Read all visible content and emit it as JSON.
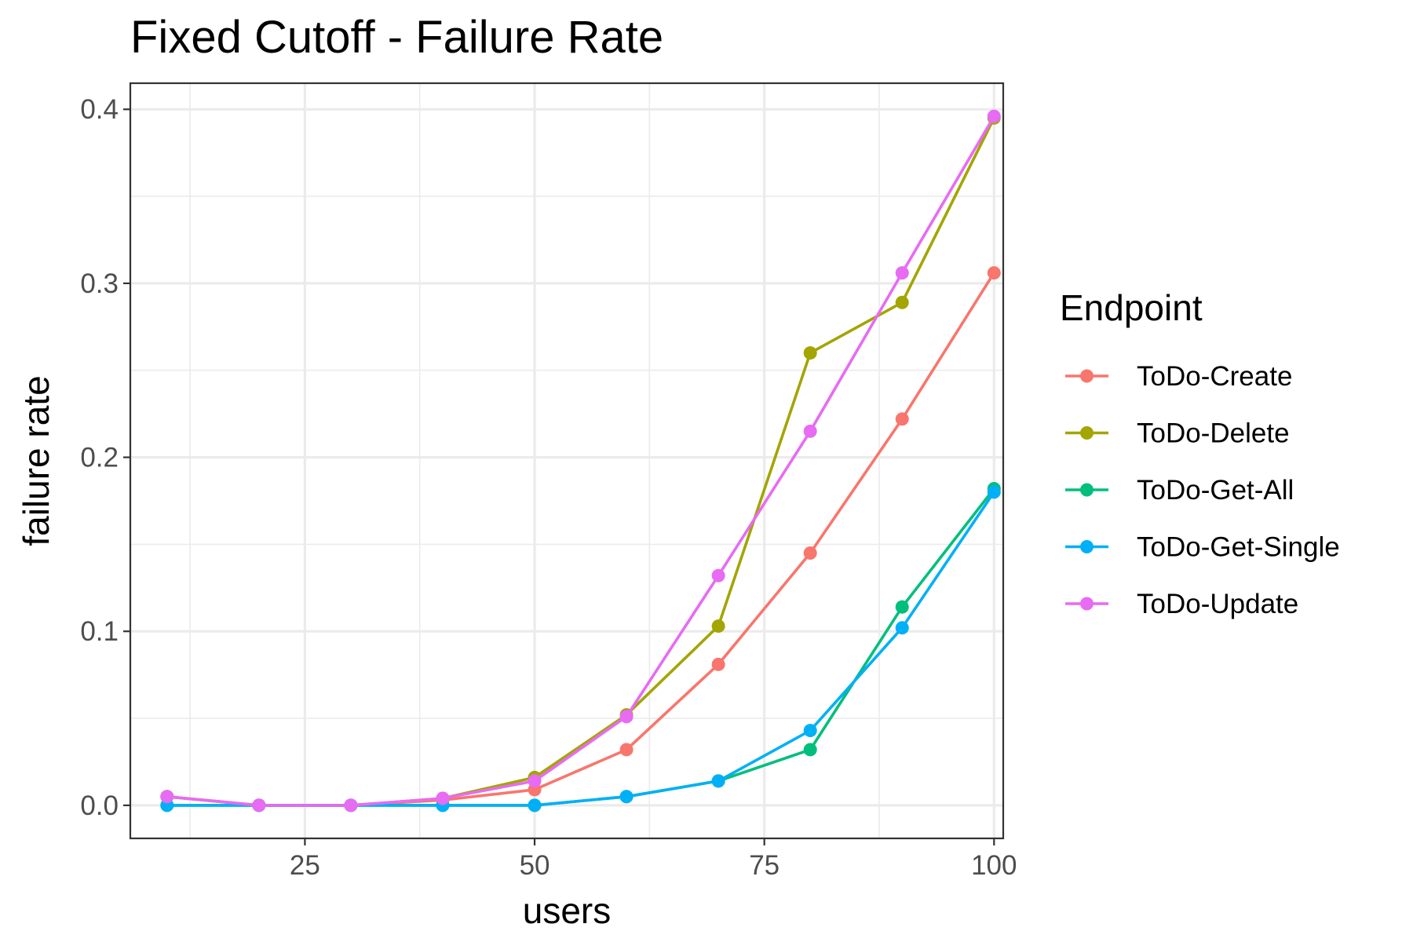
{
  "chart_data": {
    "type": "line",
    "title": "Fixed Cutoff - Failure Rate",
    "xlabel": "users",
    "ylabel": "failure rate",
    "xlim": [
      6,
      101
    ],
    "ylim": [
      -0.019,
      0.415
    ],
    "x_ticks": [
      25,
      50,
      75,
      100
    ],
    "x_tick_labels": [
      "25",
      "50",
      "75",
      "100"
    ],
    "y_ticks": [
      0,
      0.1,
      0.2,
      0.3,
      0.4
    ],
    "y_tick_labels": [
      "0.0",
      "0.1",
      "0.2",
      "0.3",
      "0.4"
    ],
    "grid": true,
    "legend": {
      "title": "Endpoint",
      "placement": "right"
    },
    "x": [
      10,
      20,
      30,
      40,
      50,
      60,
      70,
      80,
      90,
      100
    ],
    "series": [
      {
        "name": "ToDo-Create",
        "color": "#F8766D",
        "values": [
          0.005,
          0.0,
          0.0,
          0.003,
          0.009,
          0.032,
          0.081,
          0.145,
          0.222,
          0.306
        ]
      },
      {
        "name": "ToDo-Delete",
        "color": "#A3A500",
        "values": [
          0.005,
          0.0,
          0.0,
          0.004,
          0.016,
          0.052,
          0.103,
          0.26,
          0.289,
          0.395
        ]
      },
      {
        "name": "ToDo-Get-All",
        "color": "#00BF7D",
        "values": [
          0.0,
          0.0,
          0.0,
          0.0,
          0.0,
          0.005,
          0.014,
          0.032,
          0.114,
          0.182
        ]
      },
      {
        "name": "ToDo-Get-Single",
        "color": "#00B0F6",
        "values": [
          0.0,
          0.0,
          0.0,
          0.0,
          0.0,
          0.005,
          0.014,
          0.043,
          0.102,
          0.18
        ]
      },
      {
        "name": "ToDo-Update",
        "color": "#E76BF3",
        "values": [
          0.005,
          0.0,
          0.0,
          0.004,
          0.014,
          0.051,
          0.132,
          0.215,
          0.306,
          0.396
        ]
      }
    ]
  }
}
